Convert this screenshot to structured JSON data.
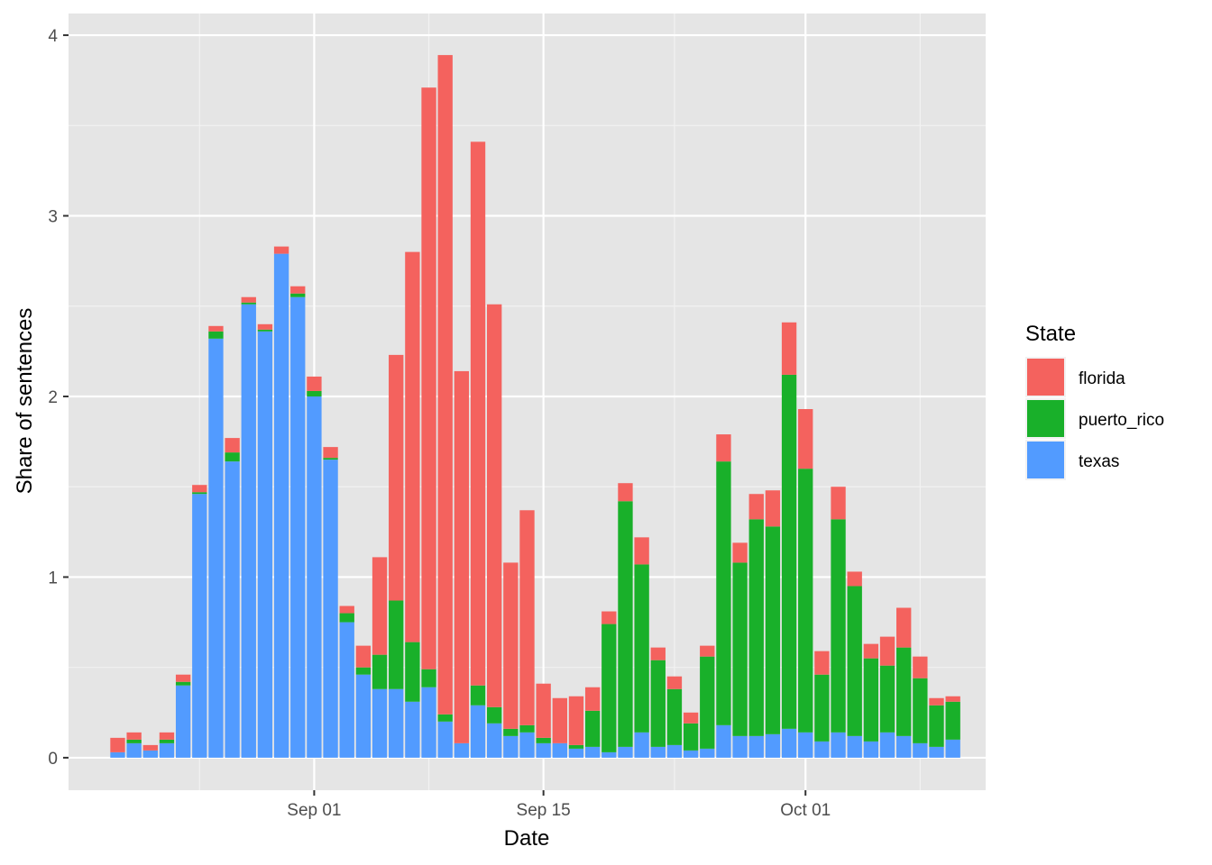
{
  "chart_data": {
    "type": "bar",
    "stacked": true,
    "title": "",
    "xlabel": "Date",
    "ylabel": "Share of sentences",
    "ylim": [
      -0.18,
      4.12
    ],
    "yticks": [
      0,
      1,
      2,
      3,
      4
    ],
    "xlim": [
      "2017-08-17",
      "2017-10-12"
    ],
    "xticks": [
      {
        "date": "2017-09-01",
        "label": "Sep 01"
      },
      {
        "date": "2017-09-15",
        "label": "Sep 15"
      },
      {
        "date": "2017-10-01",
        "label": "Oct 01"
      }
    ],
    "x_minor_grid": [
      "2017-08-25",
      "2017-09-08",
      "2017-09-23",
      "2017-10-08"
    ],
    "background": "#e5e5e5",
    "grid": true,
    "legend": {
      "title": "State",
      "position": "right"
    },
    "dates": [
      "2017-08-20",
      "2017-08-21",
      "2017-08-22",
      "2017-08-23",
      "2017-08-24",
      "2017-08-25",
      "2017-08-26",
      "2017-08-27",
      "2017-08-28",
      "2017-08-29",
      "2017-08-30",
      "2017-08-31",
      "2017-09-01",
      "2017-09-02",
      "2017-09-03",
      "2017-09-04",
      "2017-09-05",
      "2017-09-06",
      "2017-09-07",
      "2017-09-08",
      "2017-09-09",
      "2017-09-10",
      "2017-09-11",
      "2017-09-12",
      "2017-09-13",
      "2017-09-14",
      "2017-09-15",
      "2017-09-16",
      "2017-09-17",
      "2017-09-18",
      "2017-09-19",
      "2017-09-20",
      "2017-09-21",
      "2017-09-22",
      "2017-09-23",
      "2017-09-24",
      "2017-09-25",
      "2017-09-26",
      "2017-09-27",
      "2017-09-28",
      "2017-09-29",
      "2017-09-30",
      "2017-10-01",
      "2017-10-02",
      "2017-10-03",
      "2017-10-04",
      "2017-10-05",
      "2017-10-06",
      "2017-10-07",
      "2017-10-08",
      "2017-10-09",
      "2017-10-10"
    ],
    "series": [
      {
        "name": "texas",
        "color": "#529bff",
        "values": [
          0.03,
          0.08,
          0.04,
          0.08,
          0.4,
          1.46,
          2.32,
          1.64,
          2.51,
          2.36,
          2.79,
          2.55,
          2.0,
          1.65,
          0.75,
          0.46,
          0.38,
          0.38,
          0.31,
          0.39,
          0.2,
          0.08,
          0.29,
          0.19,
          0.12,
          0.14,
          0.08,
          0.08,
          0.05,
          0.06,
          0.03,
          0.06,
          0.14,
          0.06,
          0.07,
          0.04,
          0.05,
          0.18,
          0.12,
          0.12,
          0.13,
          0.16,
          0.14,
          0.09,
          0.14,
          0.12,
          0.09,
          0.14,
          0.12,
          0.08,
          0.06,
          0.1
        ]
      },
      {
        "name": "puerto_rico",
        "color": "#19b02a",
        "values": [
          0.0,
          0.02,
          0.0,
          0.02,
          0.02,
          0.01,
          0.04,
          0.05,
          0.01,
          0.01,
          0.0,
          0.02,
          0.03,
          0.01,
          0.05,
          0.04,
          0.19,
          0.49,
          0.33,
          0.1,
          0.04,
          0.0,
          0.11,
          0.09,
          0.04,
          0.04,
          0.03,
          0.0,
          0.02,
          0.2,
          0.71,
          1.36,
          0.93,
          0.48,
          0.31,
          0.15,
          0.51,
          1.46,
          0.96,
          1.2,
          1.15,
          1.96,
          1.46,
          0.37,
          1.18,
          0.83,
          0.46,
          0.37,
          0.49,
          0.36,
          0.23,
          0.21
        ]
      },
      {
        "name": "florida",
        "color": "#f4625e",
        "values": [
          0.08,
          0.04,
          0.03,
          0.04,
          0.04,
          0.04,
          0.03,
          0.08,
          0.03,
          0.03,
          0.04,
          0.04,
          0.08,
          0.06,
          0.04,
          0.12,
          0.54,
          1.36,
          2.16,
          3.22,
          3.65,
          2.06,
          3.01,
          2.23,
          0.92,
          1.19,
          0.3,
          0.25,
          0.27,
          0.13,
          0.07,
          0.1,
          0.15,
          0.07,
          0.07,
          0.06,
          0.06,
          0.15,
          0.11,
          0.14,
          0.2,
          0.29,
          0.33,
          0.13,
          0.18,
          0.08,
          0.08,
          0.16,
          0.22,
          0.12,
          0.04,
          0.03
        ]
      }
    ]
  }
}
